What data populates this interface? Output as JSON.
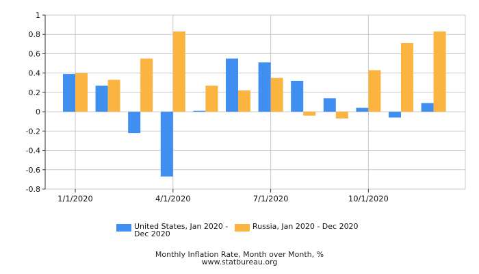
{
  "chart_data": {
    "type": "bar",
    "title": "",
    "xlabel": "",
    "ylabel": "",
    "ylim": [
      -0.8,
      1
    ],
    "y_ticks": [
      1,
      0.8,
      0.6,
      0.4,
      0.2,
      0,
      -0.2,
      -0.4,
      -0.6,
      -0.8
    ],
    "y_tick_labels": [
      "1",
      "0.8",
      "0.6",
      "0.4",
      "0.2",
      "0",
      "-0.2",
      "-0.4",
      "-0.6",
      "-0.8"
    ],
    "x_tick_labels": [
      {
        "label": "1/1/2020",
        "month_index": 0
      },
      {
        "label": "4/1/2020",
        "month_index": 3
      },
      {
        "label": "7/1/2020",
        "month_index": 6
      },
      {
        "label": "10/1/2020",
        "month_index": 9
      }
    ],
    "grid": true,
    "legend_position": "bottom",
    "series": [
      {
        "name_lines": [
          "United States, Jan 2020 -",
          "Dec 2020"
        ],
        "color": "#3f8ef0",
        "values": [
          0.39,
          0.27,
          -0.22,
          -0.67,
          0.01,
          0.55,
          0.51,
          0.32,
          0.14,
          0.04,
          -0.06,
          0.09
        ]
      },
      {
        "name_lines": [
          "Russia, Jan 2020 - Dec 2020"
        ],
        "color": "#fbb440",
        "values": [
          0.4,
          0.33,
          0.55,
          0.83,
          0.27,
          0.22,
          0.35,
          -0.04,
          -0.07,
          0.43,
          0.71,
          0.83
        ]
      }
    ]
  },
  "caption": {
    "line1": "Monthly Inflation Rate, Month over Month, %",
    "line2": "www.statbureau.org"
  }
}
